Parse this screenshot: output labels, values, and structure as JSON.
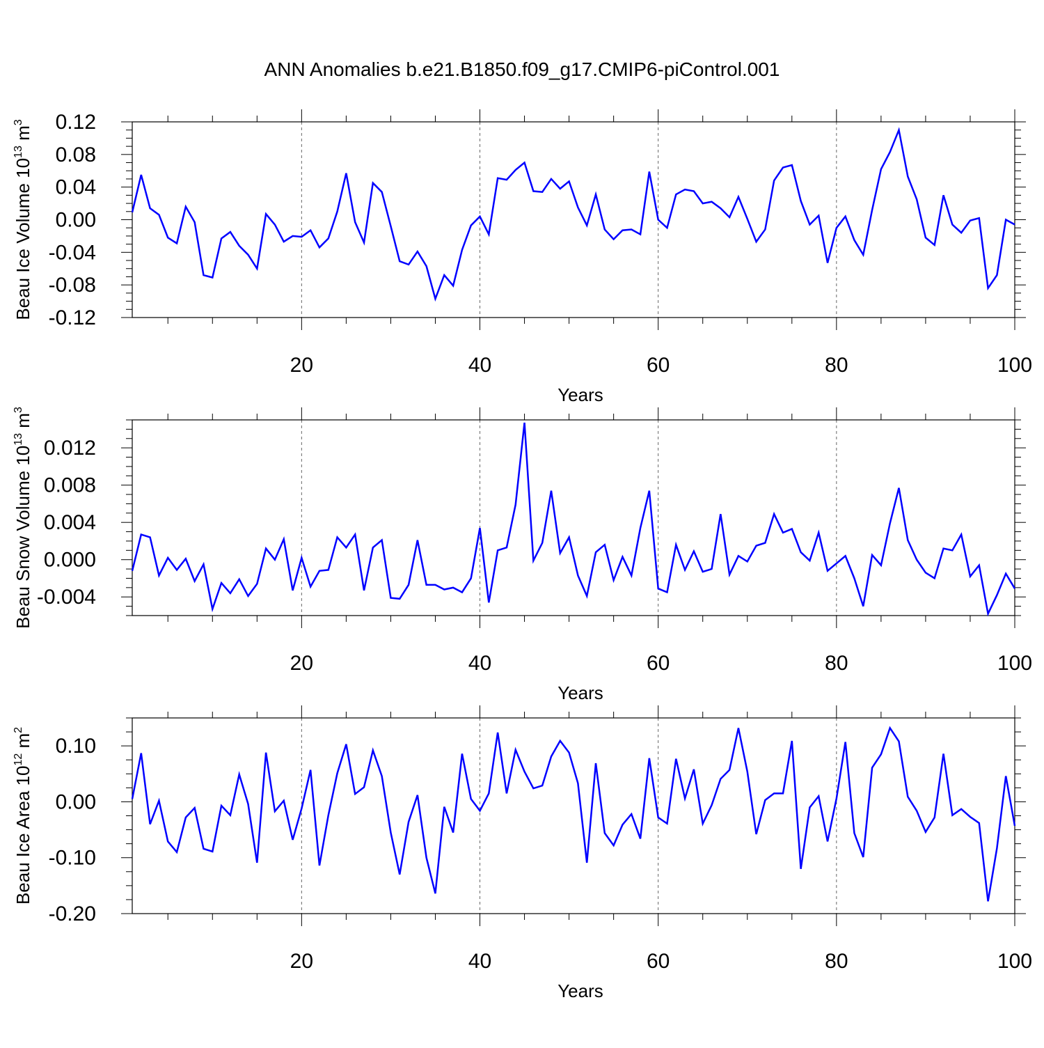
{
  "title": "ANN Anomalies b.e21.B1850.f09_g17.CMIP6-piControl.001",
  "line_color": "#0000ff",
  "chart_data": [
    {
      "type": "line",
      "ylabel": "Beau Ice Volume 10",
      "ylabel_exp": "13",
      "ylabel_unit": " m",
      "ylabel_unit_exp": "3",
      "xlabel": "Years",
      "xlim": [
        1,
        100
      ],
      "ylim": [
        -0.12,
        0.12
      ],
      "xticks": [
        20,
        40,
        60,
        80,
        100
      ],
      "yticks": [
        -0.12,
        -0.08,
        -0.04,
        0.0,
        0.04,
        0.08,
        0.12
      ],
      "ytick_labels": [
        "-0.12",
        "-0.08",
        "-0.04",
        "0.00",
        "0.04",
        "0.08",
        "0.12"
      ],
      "grid": "vertical dashed at major x ticks",
      "series": [
        {
          "values": [
            0.009,
            0.055,
            0.014,
            0.006,
            -0.022,
            -0.029,
            0.016,
            -0.003,
            -0.068,
            -0.071,
            -0.023,
            -0.015,
            -0.032,
            -0.043,
            -0.06,
            0.007,
            -0.006,
            -0.027,
            -0.02,
            -0.021,
            -0.013,
            -0.034,
            -0.023,
            0.01,
            0.057,
            -0.003,
            -0.028,
            0.045,
            0.034,
            -0.008,
            -0.051,
            -0.055,
            -0.039,
            -0.057,
            -0.097,
            -0.068,
            -0.081,
            -0.037,
            -0.007,
            0.004,
            -0.018,
            0.051,
            0.049,
            0.061,
            0.07,
            0.035,
            0.034,
            0.05,
            0.038,
            0.047,
            0.015,
            -0.007,
            0.031,
            -0.012,
            -0.024,
            -0.013,
            -0.012,
            -0.018,
            0.059,
            0.0,
            -0.01,
            0.031,
            0.037,
            0.035,
            0.02,
            0.022,
            0.014,
            0.003,
            0.028,
            0.001,
            -0.027,
            -0.012,
            0.048,
            0.064,
            0.067,
            0.023,
            -0.006,
            0.005,
            -0.053,
            -0.01,
            0.004,
            -0.025,
            -0.043,
            0.012,
            0.062,
            0.083,
            0.11,
            0.053,
            0.025,
            -0.022,
            -0.031,
            0.03,
            -0.006,
            -0.016,
            -0.001,
            0.002,
            -0.084,
            -0.068,
            0.0,
            -0.006
          ]
        }
      ]
    },
    {
      "type": "line",
      "ylabel": "Beau Snow Volume 10",
      "ylabel_exp": "13",
      "ylabel_unit": " m",
      "ylabel_unit_exp": "3",
      "xlabel": "Years",
      "xlim": [
        1,
        100
      ],
      "ylim": [
        -0.006,
        0.015
      ],
      "xticks": [
        20,
        40,
        60,
        80,
        100
      ],
      "yticks": [
        -0.004,
        0.0,
        0.004,
        0.008,
        0.012
      ],
      "ytick_labels": [
        "-0.004",
        "0.000",
        "0.004",
        "0.008",
        "0.012"
      ],
      "grid": "vertical dashed at major x ticks",
      "series": [
        {
          "values": [
            -0.0012,
            0.0027,
            0.0024,
            -0.0017,
            0.0002,
            -0.0011,
            0.0001,
            -0.0023,
            -0.0005,
            -0.0053,
            -0.0025,
            -0.0036,
            -0.0021,
            -0.0039,
            -0.0026,
            0.0012,
            0.0,
            0.0022,
            -0.0033,
            0.0002,
            -0.0029,
            -0.0012,
            -0.0011,
            0.0024,
            0.0013,
            0.0027,
            -0.0033,
            0.0013,
            0.0021,
            -0.0041,
            -0.0042,
            -0.0027,
            0.0021,
            -0.0027,
            -0.0027,
            -0.0032,
            -0.003,
            -0.0035,
            -0.002,
            0.0034,
            -0.0046,
            0.001,
            0.0013,
            0.0059,
            0.0147,
            -0.0001,
            0.0018,
            0.0074,
            0.0007,
            0.0024,
            -0.0017,
            -0.0039,
            0.0008,
            0.0016,
            -0.0022,
            0.0003,
            -0.0017,
            0.0034,
            0.0074,
            -0.0031,
            -0.0035,
            0.0016,
            -0.0011,
            0.0009,
            -0.0013,
            -0.001,
            0.0049,
            -0.0016,
            0.0004,
            -0.0002,
            0.0015,
            0.0018,
            0.0049,
            0.0029,
            0.0033,
            0.0008,
            -0.0001,
            0.0029,
            -0.0012,
            -0.0004,
            0.0004,
            -0.002,
            -0.005,
            0.0005,
            -0.0006,
            0.0039,
            0.0077,
            0.0021,
            0.0,
            -0.0014,
            -0.002,
            0.0012,
            0.001,
            0.0027,
            -0.0018,
            -0.0006,
            -0.0058,
            -0.0038,
            -0.0015,
            -0.0031
          ]
        }
      ]
    },
    {
      "type": "line",
      "ylabel": "Beau Ice Area 10",
      "ylabel_exp": "12",
      "ylabel_unit": " m",
      "ylabel_unit_exp": "2",
      "xlabel": "Years",
      "xlim": [
        1,
        100
      ],
      "ylim": [
        -0.2,
        0.15
      ],
      "xticks": [
        20,
        40,
        60,
        80,
        100
      ],
      "yticks": [
        -0.2,
        -0.1,
        0.0,
        0.1
      ],
      "ytick_labels": [
        "-0.20",
        "-0.10",
        "0.00",
        "0.10"
      ],
      "grid": "vertical dashed at major x ticks",
      "series": [
        {
          "values": [
            0.005,
            0.087,
            -0.04,
            0.002,
            -0.071,
            -0.09,
            -0.028,
            -0.011,
            -0.084,
            -0.089,
            -0.007,
            -0.024,
            0.049,
            -0.004,
            -0.109,
            0.088,
            -0.017,
            0.002,
            -0.068,
            -0.012,
            0.057,
            -0.114,
            -0.024,
            0.051,
            0.103,
            0.014,
            0.026,
            0.092,
            0.046,
            -0.055,
            -0.13,
            -0.036,
            0.012,
            -0.1,
            -0.164,
            -0.009,
            -0.055,
            0.086,
            0.005,
            -0.016,
            0.015,
            0.124,
            0.015,
            0.093,
            0.054,
            0.024,
            0.029,
            0.081,
            0.109,
            0.088,
            0.033,
            -0.109,
            0.069,
            -0.056,
            -0.078,
            -0.041,
            -0.022,
            -0.066,
            0.078,
            -0.028,
            -0.039,
            0.077,
            0.006,
            0.058,
            -0.039,
            -0.006,
            0.041,
            0.057,
            0.132,
            0.054,
            -0.058,
            0.003,
            0.015,
            0.015,
            0.109,
            -0.12,
            -0.01,
            0.01,
            -0.071,
            0.006,
            0.107,
            -0.056,
            -0.099,
            0.061,
            0.085,
            0.132,
            0.108,
            0.009,
            -0.016,
            -0.054,
            -0.028,
            0.086,
            -0.024,
            -0.013,
            -0.027,
            -0.038,
            -0.178,
            -0.083,
            0.046,
            -0.043
          ]
        }
      ]
    }
  ]
}
